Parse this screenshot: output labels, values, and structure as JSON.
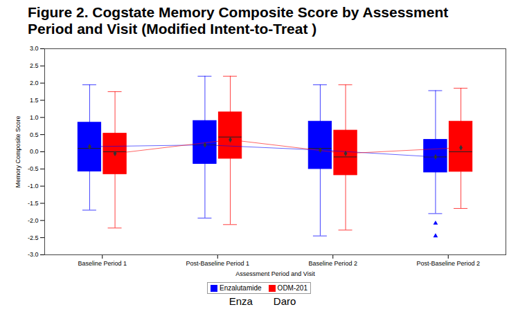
{
  "chart_data": {
    "type": "box",
    "title": "Figure 2. Cogstate Memory Composite Score by Assessment Period and Visit (Modified Intent-to-Treat )",
    "x_label": "Assessment Period and Visit",
    "y_label": "Memory Composite Score",
    "categories": [
      "Baseline Period 1",
      "Post-Baseline Period 1",
      "Baseline Period 2",
      "Post-Baseline Period 2"
    ],
    "ylim": [
      -3.0,
      3.0
    ],
    "yticks": [
      {
        "value": -3.0,
        "label": "-3.0"
      },
      {
        "value": -2.5,
        "label": "-2.5"
      },
      {
        "value": -2.0,
        "label": "-2.0"
      },
      {
        "value": -1.5,
        "label": "-1.5"
      },
      {
        "value": -1.0,
        "label": "-1.0"
      },
      {
        "value": -0.5,
        "label": "-0.5"
      },
      {
        "value": 0,
        "label": "0.0"
      },
      {
        "value": 0.5,
        "label": "0.5"
      },
      {
        "value": 1.0,
        "label": "1.0"
      },
      {
        "value": 1.5,
        "label": "1.5"
      },
      {
        "value": 2.0,
        "label": "2.0"
      },
      {
        "value": 2.5,
        "label": "2.5"
      },
      {
        "value": 3.0,
        "label": "3.0"
      }
    ],
    "legend": "bottom",
    "series": [
      {
        "name": "Enzalutamide",
        "color": "#0000ff",
        "min": [
          -1.7,
          -1.93,
          -2.45,
          -1.8
        ],
        "q1": [
          -0.57,
          -0.35,
          -0.5,
          -0.6
        ],
        "median": [
          0.1,
          0.2,
          0.1,
          -0.15
        ],
        "q3": [
          0.85,
          0.9,
          0.88,
          0.35
        ],
        "max": [
          1.95,
          2.2,
          1.95,
          1.78
        ],
        "mean": [
          0.15,
          0.2,
          0.05,
          -0.15
        ],
        "outliers": [
          [],
          [],
          [],
          [
            -2.08,
            -2.45
          ]
        ]
      },
      {
        "name": "ODM-201",
        "color": "#ff0000",
        "min": [
          -2.22,
          -2.12,
          -2.28,
          -1.65
        ],
        "q1": [
          -0.65,
          -0.2,
          -0.68,
          -0.58
        ],
        "median": [
          0.0,
          0.43,
          -0.15,
          0.0
        ],
        "q3": [
          0.53,
          1.15,
          0.62,
          0.88
        ],
        "max": [
          1.75,
          2.2,
          1.95,
          1.85
        ],
        "mean": [
          -0.05,
          0.35,
          -0.05,
          0.12
        ],
        "outliers": [
          [],
          [],
          [],
          []
        ]
      }
    ],
    "annotations": [
      "Enza",
      "Daro"
    ]
  }
}
